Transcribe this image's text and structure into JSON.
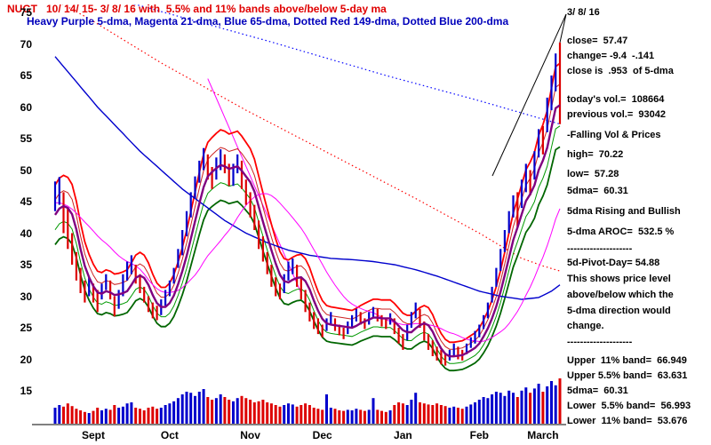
{
  "title": {
    "line1": "NUGT   10/ 14/ 15- 3/ 8/ 16 with  5.5% and 11% bands above/below 5-day ma",
    "line2": "Heavy Purple 5-dma, Magenta 21-dma, Blue 65-dma, Dotted Red 149-dma, Dotted Blue 200-dma"
  },
  "right_panel": {
    "lines": [
      "3/ 8/ 16",
      "close=  57.47",
      "change= -9.4  -.141",
      "close is  .953  of 5-dma",
      "today's vol.=  108664",
      "previous vol.=  93042",
      "-Falling Vol & Prices",
      "high=  70.22",
      "low=  57.28",
      "5dma=  60.31",
      "5dma Rising and Bullish",
      "5-dma AROC=  532.5 %",
      "--------------------",
      "5d-Pivot-Day= 54.88",
      "This shows price level",
      "above/below which the",
      "5-dma direction would",
      "change.",
      "--------------------",
      "Upper  11% band=  66.949",
      "Upper 5.5% band=  63.631",
      "5dma=  60.31",
      "Lower  5.5% band=  56.993",
      "Lower  11% band=  53.676"
    ]
  },
  "axis": {
    "y_ticks": [
      75,
      70,
      65,
      60,
      55,
      50,
      45,
      40,
      35,
      30,
      25,
      20,
      15
    ],
    "months": [
      {
        "label": "Sept",
        "day": 9
      },
      {
        "label": "Oct",
        "day": 27
      },
      {
        "label": "Nov",
        "day": 46
      },
      {
        "label": "Dec",
        "day": 63
      },
      {
        "label": "Jan",
        "day": 82
      },
      {
        "label": "Feb",
        "day": 100
      },
      {
        "label": "March",
        "day": 115
      }
    ]
  },
  "colors": {
    "title_red": "#e00000",
    "legend_blue": "#0000bb",
    "bar_up": "#0000cc",
    "bar_down": "#dd0000",
    "ma5": "#800080",
    "ma21": "#ff00ff",
    "ma65": "#0000cd",
    "ma149": "#ff0000",
    "ma200": "#0000ff",
    "band_upper": "#ff0000",
    "band_upper_inner": "#cc2222",
    "band_lower_inner": "#009900",
    "band_lower": "#006600",
    "axis": "#000000",
    "callout": "#000000",
    "trendline": "#ff00ff"
  },
  "chart_data": {
    "type": "ohlc+volume",
    "symbol": "NUGT",
    "title": "NUGT 10/14/15 - 3/8/16 with 5.5% and 11% bands above/below 5-day ma",
    "date_range": "10/14/15 - 3/8/16",
    "ylim": [
      15,
      75
    ],
    "x_month_labels": [
      "Sept",
      "Oct",
      "Nov",
      "Dec",
      "Jan",
      "Feb",
      "March"
    ],
    "legend": [
      "5-dma (heavy purple)",
      "21-dma (magenta)",
      "65-dma (blue)",
      "149-dma (dotted red)",
      "200-dma (dotted blue)",
      "Upper/Lower 5.5% and 11% bands"
    ],
    "highs": [
      48.2,
      48.9,
      46.5,
      44.0,
      40.0,
      37.0,
      34.5,
      32.5,
      33.0,
      32.0,
      31.0,
      32.0,
      33.5,
      32.5,
      30.0,
      31.0,
      33.5,
      35.5,
      36.5,
      35.0,
      33.5,
      31.5,
      30.0,
      29.0,
      28.5,
      29.5,
      31.0,
      32.5,
      34.5,
      37.5,
      40.5,
      43.5,
      46.5,
      49.0,
      51.5,
      53.5,
      52.5,
      50.5,
      52.0,
      53.3,
      52.5,
      51.0,
      51.0,
      52.5,
      51.5,
      48.5,
      46.5,
      44.5,
      42.0,
      39.5,
      37.0,
      35.0,
      33.0,
      32.0,
      33.5,
      35.5,
      36.0,
      35.0,
      33.0,
      31.0,
      29.0,
      27.5,
      26.5,
      25.5,
      26.5,
      27.5,
      26.5,
      25.5,
      25.0,
      26.0,
      27.0,
      28.0,
      27.5,
      26.5,
      27.5,
      28.3,
      28.0,
      27.0,
      26.5,
      27.3,
      26.5,
      25.0,
      24.0,
      25.5,
      27.5,
      29.0,
      28.0,
      26.0,
      24.0,
      23.0,
      22.0,
      21.5,
      21.0,
      21.5,
      22.5,
      22.0,
      21.5,
      22.5,
      23.5,
      24.5,
      25.5,
      27.0,
      29.0,
      31.5,
      34.5,
      37.5,
      40.5,
      43.5,
      46.0,
      46.5,
      48.5,
      51.0,
      50.0,
      53.0,
      56.5,
      57.0,
      61.5,
      65.0,
      68.5,
      70.22
    ],
    "lows": [
      43.5,
      44.5,
      40.0,
      37.5,
      35.0,
      32.5,
      30.5,
      29.0,
      30.0,
      29.0,
      27.5,
      29.5,
      31.0,
      29.5,
      26.8,
      28.0,
      30.0,
      32.5,
      33.5,
      32.0,
      30.5,
      29.0,
      27.5,
      26.5,
      26.2,
      27.0,
      28.5,
      30.0,
      32.0,
      34.5,
      36.5,
      39.5,
      42.5,
      45.5,
      48.0,
      50.0,
      48.5,
      47.0,
      48.5,
      50.0,
      49.5,
      47.5,
      47.5,
      49.5,
      47.0,
      44.5,
      42.5,
      40.5,
      37.5,
      35.5,
      33.5,
      31.5,
      30.0,
      29.5,
      30.5,
      32.5,
      33.5,
      31.5,
      29.5,
      27.5,
      26.0,
      24.8,
      24.0,
      23.5,
      24.5,
      25.5,
      24.5,
      23.8,
      23.2,
      24.0,
      25.0,
      26.0,
      25.5,
      24.8,
      25.5,
      26.5,
      26.0,
      25.2,
      24.8,
      25.5,
      24.0,
      22.5,
      21.5,
      23.0,
      25.0,
      26.5,
      25.0,
      23.0,
      21.5,
      20.5,
      19.8,
      19.2,
      19.0,
      19.8,
      20.5,
      20.0,
      19.8,
      20.8,
      21.8,
      22.5,
      23.5,
      24.8,
      26.5,
      29.0,
      31.5,
      34.0,
      37.0,
      40.0,
      42.5,
      41.0,
      44.0,
      46.5,
      46.0,
      48.5,
      52.0,
      52.5,
      56.0,
      59.5,
      62.5,
      57.28
    ],
    "closes": [
      46.0,
      47.5,
      44.0,
      40.5,
      37.0,
      34.0,
      32.0,
      30.5,
      31.5,
      30.0,
      29.0,
      31.0,
      32.5,
      30.5,
      28.0,
      29.5,
      32.0,
      34.0,
      35.5,
      33.5,
      31.5,
      30.0,
      28.5,
      27.5,
      27.0,
      28.5,
      30.0,
      31.5,
      33.5,
      36.0,
      39.0,
      42.0,
      45.0,
      47.5,
      50.0,
      52.0,
      50.5,
      48.5,
      50.5,
      52.5,
      51.0,
      48.5,
      49.5,
      51.5,
      49.0,
      46.5,
      44.0,
      42.0,
      39.5,
      37.0,
      35.0,
      33.0,
      31.5,
      30.5,
      32.0,
      34.0,
      35.0,
      33.0,
      31.0,
      29.0,
      27.5,
      26.0,
      25.0,
      24.5,
      25.5,
      26.5,
      25.5,
      24.5,
      24.0,
      25.0,
      26.0,
      27.0,
      26.5,
      25.5,
      26.5,
      27.5,
      27.0,
      26.0,
      25.5,
      26.5,
      25.0,
      23.5,
      22.5,
      24.0,
      26.5,
      28.0,
      26.0,
      24.0,
      22.5,
      21.5,
      20.5,
      20.0,
      19.8,
      20.5,
      21.5,
      21.0,
      20.5,
      21.5,
      22.5,
      23.5,
      24.5,
      26.0,
      28.0,
      30.5,
      33.0,
      36.0,
      39.0,
      42.0,
      44.5,
      43.0,
      46.5,
      49.5,
      47.5,
      51.5,
      55.0,
      54.2,
      59.5,
      63.5,
      66.9,
      57.47
    ],
    "volumes": [
      30,
      35,
      32,
      38,
      33,
      28,
      25,
      22,
      20,
      24,
      30,
      25,
      28,
      26,
      35,
      30,
      32,
      38,
      40,
      30,
      28,
      25,
      30,
      32,
      28,
      30,
      35,
      38,
      42,
      48,
      55,
      60,
      58,
      52,
      60,
      65,
      50,
      45,
      48,
      55,
      50,
      45,
      42,
      48,
      52,
      48,
      45,
      40,
      42,
      45,
      40,
      38,
      35,
      32,
      35,
      38,
      36,
      32,
      35,
      38,
      35,
      30,
      28,
      26,
      55,
      30,
      28,
      25,
      24,
      26,
      25,
      28,
      26,
      24,
      26,
      48,
      26,
      24,
      22,
      25,
      35,
      40,
      38,
      35,
      45,
      58,
      40,
      38,
      36,
      35,
      38,
      35,
      33,
      30,
      32,
      30,
      28,
      32,
      36,
      40,
      45,
      50,
      48,
      55,
      60,
      58,
      52,
      62,
      58,
      50,
      62,
      68,
      58,
      66,
      75,
      60,
      70,
      80,
      72,
      85
    ],
    "prehistory_closes": [
      48,
      48,
      47.5,
      47,
      47,
      46.5,
      46,
      46,
      45.5,
      45,
      44.5,
      44,
      43.5,
      43,
      43,
      42.5,
      42.5,
      42,
      42,
      42
    ],
    "ma_polylines": {
      "ma65": [
        [
          0,
          68
        ],
        [
          5,
          64
        ],
        [
          10,
          60
        ],
        [
          15,
          56.5
        ],
        [
          20,
          53
        ],
        [
          25,
          50
        ],
        [
          30,
          47
        ],
        [
          35,
          44.5
        ],
        [
          40,
          42
        ],
        [
          45,
          40
        ],
        [
          50,
          38.5
        ],
        [
          55,
          37.3
        ],
        [
          60,
          36.5
        ],
        [
          65,
          36
        ],
        [
          70,
          35.8
        ],
        [
          75,
          35.5
        ],
        [
          80,
          35
        ],
        [
          85,
          34.2
        ],
        [
          90,
          33.2
        ],
        [
          95,
          32
        ],
        [
          100,
          30.8
        ],
        [
          105,
          30
        ],
        [
          110,
          29.5
        ],
        [
          114,
          29.8
        ],
        [
          117,
          30.8
        ],
        [
          119,
          31.8
        ]
      ],
      "ma149": [
        [
          0,
          77
        ],
        [
          8,
          74
        ],
        [
          25,
          67
        ],
        [
          45,
          59.5
        ],
        [
          65,
          52.5
        ],
        [
          85,
          45.5
        ],
        [
          100,
          40
        ],
        [
          110,
          36
        ],
        [
          115,
          34.8
        ],
        [
          119,
          34
        ]
      ],
      "ma200": [
        [
          15,
          77
        ],
        [
          50,
          70.5
        ],
        [
          78,
          65
        ],
        [
          100,
          61
        ],
        [
          119,
          57.3
        ]
      ]
    },
    "trendline_magenta": [
      [
        36,
        64.5
      ],
      [
        58,
        30.5
      ]
    ],
    "band_multipliers": {
      "upper11": 1.11,
      "upper55": 1.055,
      "lower55": 0.945,
      "lower11": 0.89
    },
    "stats": {
      "date": "3/8/16",
      "close": 57.47,
      "change": -9.4,
      "change_ratio": -0.141,
      "close_to_5dma": 0.953,
      "todays_vol": 108664,
      "previous_vol": 93042,
      "high": 70.22,
      "low": 57.28,
      "ma5": 60.31,
      "aroc_pct": 532.5,
      "pivot_day": 54.88,
      "upper_11_band": 66.949,
      "upper_55_band": 63.631,
      "lower_55_band": 56.993,
      "lower_11_band": 53.676
    }
  }
}
